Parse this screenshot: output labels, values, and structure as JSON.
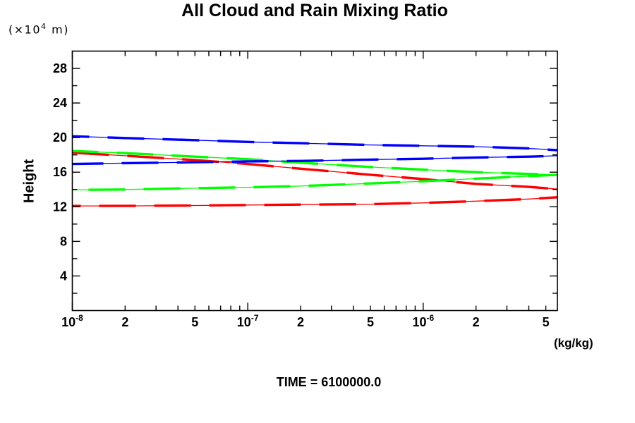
{
  "title": "All Cloud and Rain Mixing Ratio",
  "y_unit": {
    "pre": "(×10",
    "exp": "4",
    "post": " m)"
  },
  "y_axis_label": "Height",
  "x_axis_unit": "(kg/kg)",
  "time_label": "TIME = 6100000.0",
  "colors": {
    "frame": "#000000",
    "blue": "#0000ff",
    "green": "#00ff00",
    "red": "#ff0000",
    "background": "#ffffff"
  },
  "chart_data": {
    "type": "line",
    "title": "All Cloud and Rain Mixing Ratio",
    "xlabel": "(kg/kg)",
    "ylabel": "Height (×10⁴ m)",
    "x_scale": "log",
    "xlim": [
      1e-08,
      5.82e-06
    ],
    "ylim": [
      0,
      30
    ],
    "grid": false,
    "legend": "none",
    "frame": "box-with-inward-ticks",
    "x_major_ticks": [
      1e-08,
      1e-07,
      1e-06
    ],
    "x_minor_ticks": [
      2e-08,
      3e-08,
      4e-08,
      5e-08,
      6e-08,
      7e-08,
      8e-08,
      9e-08,
      2e-07,
      3e-07,
      4e-07,
      5e-07,
      6e-07,
      7e-07,
      8e-07,
      9e-07,
      2e-06,
      3e-06,
      4e-06,
      5e-06
    ],
    "x_tick_labels": [
      {
        "value": 1e-08,
        "base": "10",
        "exp": "-8"
      },
      {
        "value": 2e-08,
        "base": "2"
      },
      {
        "value": 5e-08,
        "base": "5"
      },
      {
        "value": 1e-07,
        "base": "10",
        "exp": "-7"
      },
      {
        "value": 2e-07,
        "base": "2"
      },
      {
        "value": 5e-07,
        "base": "5"
      },
      {
        "value": 1e-06,
        "base": "10",
        "exp": "-6"
      },
      {
        "value": 2e-06,
        "base": "2"
      },
      {
        "value": 5e-06,
        "base": "5"
      }
    ],
    "y_major_ticks": [
      4,
      8,
      12,
      16,
      20,
      24,
      28
    ],
    "y_minor_ticks": [
      2,
      6,
      10,
      14,
      18,
      22,
      26
    ],
    "series": [
      {
        "name": "red-upper",
        "color": "#ff0000",
        "style": "thick-dash-on-thin",
        "x": [
          1e-08,
          2e-08,
          5e-08,
          1e-07,
          2e-07,
          5e-07,
          1e-06,
          2e-06,
          4e-06,
          5.82e-06
        ],
        "y": [
          18.25,
          17.9,
          17.4,
          16.95,
          16.4,
          15.7,
          15.2,
          14.65,
          14.3,
          14.05
        ]
      },
      {
        "name": "red-lower",
        "color": "#ff0000",
        "style": "thick-dash-on-thin",
        "x": [
          1e-08,
          2e-08,
          5e-08,
          1e-07,
          2e-07,
          5e-07,
          1e-06,
          2e-06,
          4e-06,
          5.82e-06
        ],
        "y": [
          12.1,
          12.1,
          12.15,
          12.2,
          12.25,
          12.3,
          12.45,
          12.65,
          12.9,
          13.1
        ]
      },
      {
        "name": "green-upper",
        "color": "#00ff00",
        "style": "thick-dash-on-thin",
        "x": [
          1e-08,
          2e-08,
          5e-08,
          1e-07,
          2e-07,
          5e-07,
          1e-06,
          2e-06,
          4e-06,
          5.82e-06
        ],
        "y": [
          18.45,
          18.2,
          17.8,
          17.5,
          17.1,
          16.6,
          16.3,
          16.0,
          15.8,
          15.7
        ]
      },
      {
        "name": "green-lower",
        "color": "#00ff00",
        "style": "thick-dash-on-thin",
        "x": [
          1e-08,
          2e-08,
          5e-08,
          1e-07,
          2e-07,
          5e-07,
          1e-06,
          2e-06,
          4e-06,
          5.82e-06
        ],
        "y": [
          13.95,
          14.0,
          14.15,
          14.25,
          14.4,
          14.7,
          14.95,
          15.25,
          15.55,
          15.7
        ]
      },
      {
        "name": "blue-upper",
        "color": "#0000ff",
        "style": "thick-dash-on-thin",
        "x": [
          1e-08,
          2e-08,
          5e-08,
          1e-07,
          2e-07,
          5e-07,
          1e-06,
          2e-06,
          4e-06,
          5.82e-06
        ],
        "y": [
          20.15,
          19.95,
          19.7,
          19.5,
          19.35,
          19.15,
          19.05,
          18.95,
          18.75,
          18.55
        ]
      },
      {
        "name": "blue-lower",
        "color": "#0000ff",
        "style": "thick-dash-on-thin",
        "x": [
          1e-08,
          2e-08,
          5e-08,
          1e-07,
          2e-07,
          5e-07,
          1e-06,
          2e-06,
          4e-06,
          5.82e-06
        ],
        "y": [
          16.95,
          17.05,
          17.15,
          17.25,
          17.3,
          17.45,
          17.55,
          17.7,
          17.8,
          17.9
        ]
      }
    ]
  }
}
